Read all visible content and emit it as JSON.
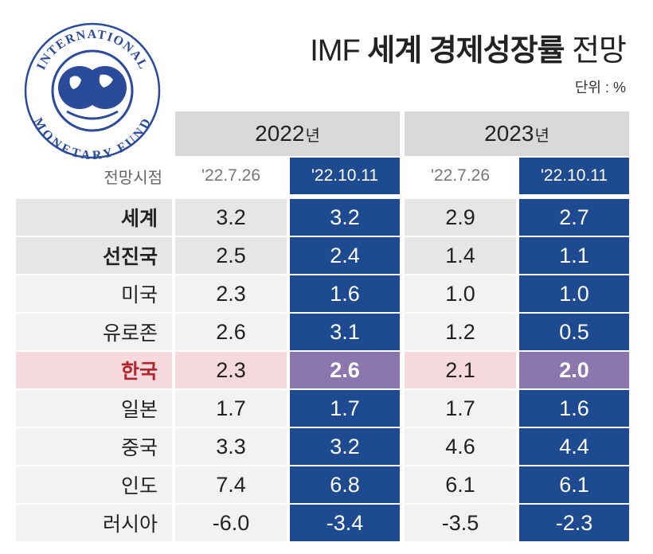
{
  "title": {
    "prefix": "IMF ",
    "bold": "세계 경제성장률",
    "suffix": " 전망"
  },
  "unit": "단위 : %",
  "logo_text_top": "INTERNATIONAL",
  "logo_text_bottom": "MONETARY FUND",
  "header": {
    "forecast_label": "전망시점",
    "years": [
      {
        "year": "2022",
        "suffix": "년"
      },
      {
        "year": "2023",
        "suffix": "년"
      }
    ],
    "dates": [
      "'22.7.26",
      "'22.10.11",
      "'22.7.26",
      "'22.10.11"
    ]
  },
  "rows": [
    {
      "name": "세계",
      "values": [
        "3.2",
        "3.2",
        "2.9",
        "2.7"
      ]
    },
    {
      "name": "선진국",
      "values": [
        "2.5",
        "2.4",
        "1.4",
        "1.1"
      ]
    },
    {
      "name": "미국",
      "values": [
        "2.3",
        "1.6",
        "1.0",
        "1.0"
      ]
    },
    {
      "name": "유로존",
      "values": [
        "2.6",
        "3.1",
        "1.2",
        "0.5"
      ]
    },
    {
      "name": "한국",
      "values": [
        "2.3",
        "2.6",
        "2.1",
        "2.0"
      ]
    },
    {
      "name": "일본",
      "values": [
        "1.7",
        "1.7",
        "1.7",
        "1.6"
      ]
    },
    {
      "name": "중국",
      "values": [
        "3.3",
        "3.2",
        "4.6",
        "4.4"
      ]
    },
    {
      "name": "인도",
      "values": [
        "7.4",
        "6.8",
        "6.1",
        "6.1"
      ]
    },
    {
      "name": "러시아",
      "values": [
        "-6.0",
        "-3.4",
        "-3.5",
        "-2.3"
      ]
    }
  ],
  "colors": {
    "new_col": "#1e4b8f",
    "korea_new": "#8b76ad",
    "korea_bg": "#f5d9dd",
    "korea_text": "#b3262c",
    "logo": "#2a4a9a"
  }
}
